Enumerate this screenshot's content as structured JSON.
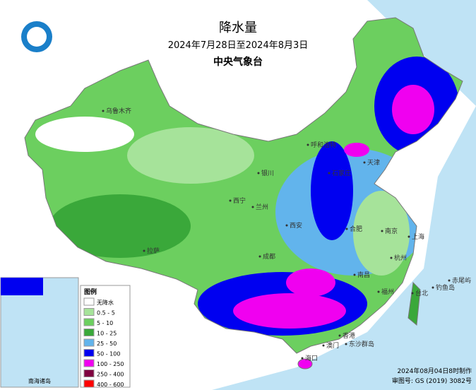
{
  "header": {
    "title": "降水量",
    "subtitle": "2024年7月28日至2024年8月3日",
    "agency": "中央气象台"
  },
  "legend": {
    "title": "图例",
    "items": [
      {
        "label": "无降水",
        "color": "#ffffff"
      },
      {
        "label": "0.5 - 5",
        "color": "#a6e39a"
      },
      {
        "label": "5 - 10",
        "color": "#6ccf5f"
      },
      {
        "label": "10 - 25",
        "color": "#3aa83a"
      },
      {
        "label": "25 - 50",
        "color": "#62b4ec"
      },
      {
        "label": "50 - 100",
        "color": "#0000f0"
      },
      {
        "label": "100 - 250",
        "color": "#f000f0"
      },
      {
        "label": "250 - 400",
        "color": "#800040"
      },
      {
        "label": "400 - 600",
        "color": "#ff0000"
      }
    ]
  },
  "places": [
    "乌鲁木齐",
    "呼和浩特",
    "天津",
    "石家庄",
    "银川",
    "西宁",
    "兰州",
    "拉萨",
    "成都",
    "西安",
    "合肥",
    "南京",
    "上海",
    "杭州",
    "南昌",
    "福州",
    "台北",
    "钓鱼岛",
    "赤尾屿",
    "香港",
    "澳门",
    "东沙群岛",
    "海口"
  ],
  "inset": {
    "label": "南海诸岛"
  },
  "footer": {
    "made": "2024年08月04日8时制作",
    "review": "审图号: GS (2019) 3082号"
  }
}
